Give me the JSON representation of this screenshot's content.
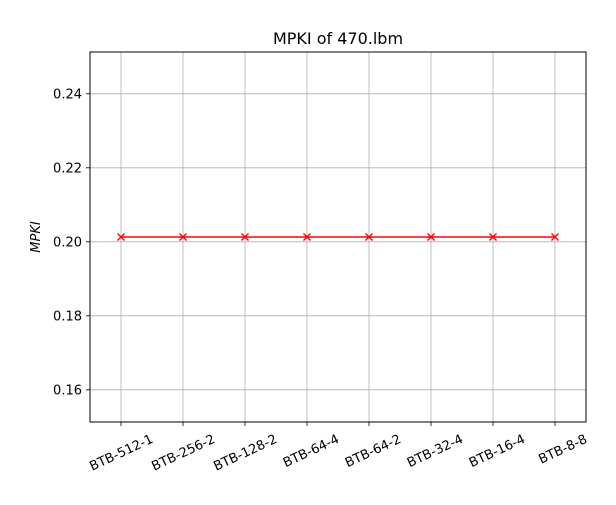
{
  "chart_data": {
    "type": "line",
    "title": "MPKI of 470.lbm",
    "xlabel": "",
    "ylabel": "MPKI",
    "categories": [
      "BTB-512-1",
      "BTB-256-2",
      "BTB-128-2",
      "BTB-64-4",
      "BTB-64-2",
      "BTB-32-4",
      "BTB-16-4",
      "BTB-8-8"
    ],
    "series": [
      {
        "values": [
          0.2013,
          0.2013,
          0.2013,
          0.2013,
          0.2013,
          0.2013,
          0.2013,
          0.2013
        ],
        "color": "#ff0000",
        "marker": "x"
      }
    ],
    "ylim": [
      0.1513,
      0.2513
    ],
    "yticks": [
      0.16,
      0.18,
      0.2,
      0.22,
      0.24
    ],
    "ytick_labels": [
      "0.16",
      "0.18",
      "0.20",
      "0.22",
      "0.24"
    ],
    "grid": true,
    "legend": "none"
  }
}
